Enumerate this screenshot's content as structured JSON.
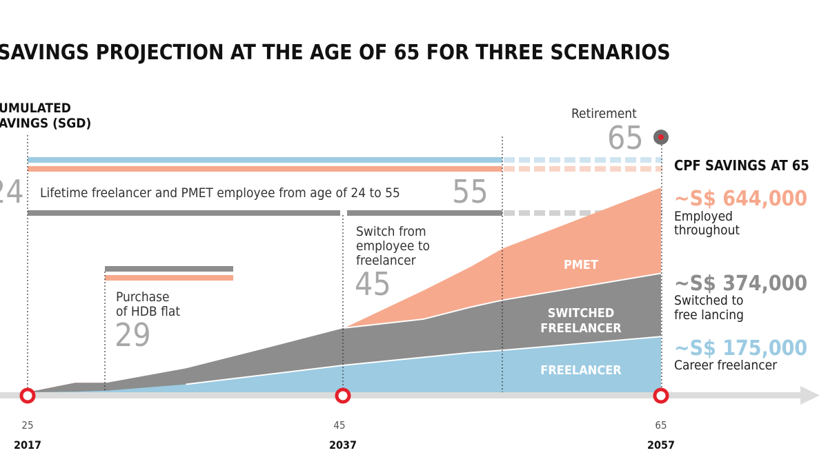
{
  "chart_data": {
    "type": "area",
    "title": "SAVINGS PROJECTION AT THE AGE OF 65 FOR THREE SCENARIOS",
    "ylabel_line1": "UMULATED",
    "ylabel_line2": "AVINGS (SGD)",
    "x_ages": [
      25,
      28,
      30,
      35,
      40,
      45,
      50,
      53,
      55,
      65
    ],
    "x_ticks": [
      {
        "age": "25",
        "year": "2017"
      },
      {
        "age": "45",
        "year": "2037"
      },
      {
        "age": "65",
        "year": "2057"
      }
    ],
    "series": [
      {
        "name": "FREELANCER",
        "color": "#9ccbe2",
        "values": [
          0,
          2000,
          5000,
          25000,
          55000,
          85000,
          110000,
          125000,
          132000,
          175000
        ]
      },
      {
        "name": "SWITCHED FREELANCER",
        "color": "#8d8d8d",
        "values": [
          0,
          30000,
          30000,
          75000,
          138000,
          202000,
          230000,
          268000,
          290000,
          374000
        ]
      },
      {
        "name": "PMET",
        "color": "#f6a98d",
        "values": [
          0,
          30000,
          30000,
          75000,
          138000,
          202000,
          320000,
          395000,
          452000,
          644000
        ]
      }
    ],
    "series_labels": {
      "pmet": "PMET",
      "switched_1": "SWITCHED",
      "switched_2": "FREELANCER",
      "freelancer": "FREELANCER"
    },
    "annotations": {
      "retirement": "Retirement",
      "retirement_age": "65",
      "age_24": "24",
      "lifetime": "Lifetime freelancer and PMET employee from age of 24 to 55",
      "age_55": "55",
      "switch_1": "Switch from",
      "switch_2": "employee to",
      "switch_3": "freelancer",
      "switch_age": "45",
      "hdb_1": "Purchase",
      "hdb_2": "of HDB flat",
      "hdb_age": "29"
    },
    "cpf_header": "CPF SAVINGS AT",
    "cpf_header_age": "65",
    "outcomes": [
      {
        "value": "~S$ 644,000",
        "line1": "Employed",
        "line2": "throughout",
        "color": "#f6a98d"
      },
      {
        "value": "~S$ 374,000",
        "line1": "Switched to",
        "line2": "free lancing",
        "color": "#8d8d8d"
      },
      {
        "value": "~S$ 175,000",
        "line1": "Career freelancer",
        "line2": "",
        "color": "#9ccbe2"
      }
    ],
    "colors": {
      "accent_red": "#e4202a",
      "pmet": "#f6a98d",
      "switched": "#8d8d8d",
      "freelancer": "#9ccbe2",
      "axis": "#dcdcdc"
    }
  }
}
